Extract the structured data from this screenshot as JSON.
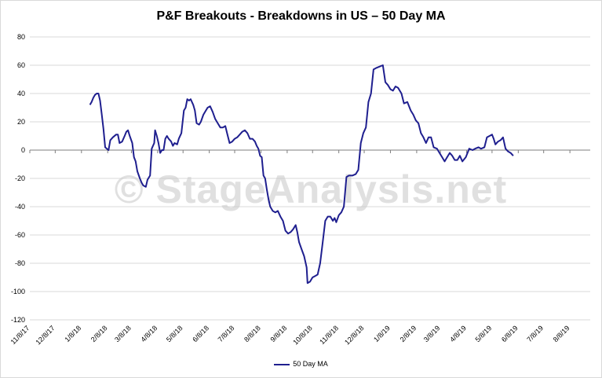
{
  "chart_data": {
    "type": "line",
    "title": "P&F Breakouts - Breakdowns in US – 50 Day MA",
    "watermark": "© StageAnalysis.net",
    "ylim": [
      -120,
      80
    ],
    "yticks": [
      80,
      60,
      40,
      20,
      0,
      -20,
      -40,
      -60,
      -80,
      -100,
      -120
    ],
    "xlim": [
      "2017-11-08",
      "2019-09-01"
    ],
    "xtick_labels": [
      "11/8/17",
      "12/8/17",
      "1/8/18",
      "2/8/18",
      "3/8/18",
      "4/8/18",
      "5/8/18",
      "6/8/18",
      "7/8/18",
      "8/8/18",
      "9/8/18",
      "10/8/18",
      "11/8/18",
      "12/8/18",
      "1/8/19",
      "2/8/19",
      "3/8/19",
      "4/8/19",
      "5/8/19",
      "6/8/19",
      "7/8/19",
      "8/8/19"
    ],
    "xtick_dates": [
      "2017-11-08",
      "2017-12-08",
      "2018-01-08",
      "2018-02-08",
      "2018-03-08",
      "2018-04-08",
      "2018-05-08",
      "2018-06-08",
      "2018-07-08",
      "2018-08-08",
      "2018-09-08",
      "2018-10-08",
      "2018-11-08",
      "2018-12-08",
      "2019-01-08",
      "2019-02-08",
      "2019-03-08",
      "2019-04-08",
      "2019-05-08",
      "2019-06-08",
      "2019-07-08",
      "2019-08-08"
    ],
    "legend": {
      "position": "bottom",
      "label": "50 Day MA"
    },
    "grid": {
      "horizontal": true,
      "vertical": false
    },
    "series": [
      {
        "name": "50 Day MA",
        "color": "#1f1f8f",
        "points": [
          [
            "2018-01-18",
            32
          ],
          [
            "2018-01-20",
            34
          ],
          [
            "2018-01-22",
            37
          ],
          [
            "2018-01-24",
            39
          ],
          [
            "2018-01-26",
            40
          ],
          [
            "2018-01-28",
            40
          ],
          [
            "2018-01-30",
            35
          ],
          [
            "2018-02-01",
            25
          ],
          [
            "2018-02-03",
            15
          ],
          [
            "2018-02-05",
            2
          ],
          [
            "2018-02-07",
            1
          ],
          [
            "2018-02-09",
            0
          ],
          [
            "2018-02-11",
            7
          ],
          [
            "2018-02-14",
            9
          ],
          [
            "2018-02-18",
            11
          ],
          [
            "2018-02-20",
            11
          ],
          [
            "2018-02-22",
            5
          ],
          [
            "2018-02-25",
            6
          ],
          [
            "2018-02-28",
            10
          ],
          [
            "2018-03-02",
            13
          ],
          [
            "2018-03-04",
            14
          ],
          [
            "2018-03-06",
            10
          ],
          [
            "2018-03-09",
            5
          ],
          [
            "2018-03-11",
            -5
          ],
          [
            "2018-03-13",
            -8
          ],
          [
            "2018-03-15",
            -15
          ],
          [
            "2018-03-18",
            -20
          ],
          [
            "2018-03-20",
            -23
          ],
          [
            "2018-03-22",
            -25
          ],
          [
            "2018-03-25",
            -26
          ],
          [
            "2018-03-27",
            -21
          ],
          [
            "2018-03-30",
            -18
          ],
          [
            "2018-04-01",
            1
          ],
          [
            "2018-04-04",
            5
          ],
          [
            "2018-04-05",
            14
          ],
          [
            "2018-04-07",
            10
          ],
          [
            "2018-04-09",
            5
          ],
          [
            "2018-04-11",
            -2
          ],
          [
            "2018-04-13",
            0
          ],
          [
            "2018-04-15",
            0
          ],
          [
            "2018-04-17",
            8
          ],
          [
            "2018-04-19",
            10
          ],
          [
            "2018-04-21",
            8
          ],
          [
            "2018-04-24",
            6
          ],
          [
            "2018-04-26",
            3
          ],
          [
            "2018-04-28",
            5
          ],
          [
            "2018-05-01",
            4
          ],
          [
            "2018-05-03",
            8
          ],
          [
            "2018-05-06",
            12
          ],
          [
            "2018-05-09",
            28
          ],
          [
            "2018-05-11",
            30
          ],
          [
            "2018-05-13",
            36
          ],
          [
            "2018-05-15",
            35
          ],
          [
            "2018-05-17",
            36
          ],
          [
            "2018-05-20",
            32
          ],
          [
            "2018-05-22",
            28
          ],
          [
            "2018-05-24",
            19
          ],
          [
            "2018-05-27",
            18
          ],
          [
            "2018-05-29",
            20
          ],
          [
            "2018-06-01",
            25
          ],
          [
            "2018-06-04",
            28
          ],
          [
            "2018-06-06",
            30
          ],
          [
            "2018-06-09",
            31
          ],
          [
            "2018-06-12",
            27
          ],
          [
            "2018-06-15",
            22
          ],
          [
            "2018-06-18",
            19
          ],
          [
            "2018-06-21",
            16
          ],
          [
            "2018-06-24",
            16
          ],
          [
            "2018-06-27",
            17
          ],
          [
            "2018-06-29",
            12
          ],
          [
            "2018-07-02",
            5
          ],
          [
            "2018-07-05",
            6
          ],
          [
            "2018-07-08",
            8
          ],
          [
            "2018-07-11",
            9
          ],
          [
            "2018-07-14",
            11
          ],
          [
            "2018-07-17",
            13
          ],
          [
            "2018-07-20",
            14
          ],
          [
            "2018-07-23",
            12
          ],
          [
            "2018-07-26",
            8
          ],
          [
            "2018-07-29",
            8
          ],
          [
            "2018-08-01",
            6
          ],
          [
            "2018-08-03",
            3
          ],
          [
            "2018-08-05",
            1
          ],
          [
            "2018-08-07",
            -4
          ],
          [
            "2018-08-09",
            -5
          ],
          [
            "2018-08-11",
            -18
          ],
          [
            "2018-08-13",
            -20
          ],
          [
            "2018-08-15",
            -28
          ],
          [
            "2018-08-17",
            -35
          ],
          [
            "2018-08-19",
            -40
          ],
          [
            "2018-08-22",
            -43
          ],
          [
            "2018-08-25",
            -44
          ],
          [
            "2018-08-28",
            -43
          ],
          [
            "2018-08-31",
            -47
          ],
          [
            "2018-09-03",
            -50
          ],
          [
            "2018-09-06",
            -57
          ],
          [
            "2018-09-09",
            -59
          ],
          [
            "2018-09-12",
            -58
          ],
          [
            "2018-09-15",
            -56
          ],
          [
            "2018-09-18",
            -53
          ],
          [
            "2018-09-20",
            -58
          ],
          [
            "2018-09-22",
            -65
          ],
          [
            "2018-09-25",
            -70
          ],
          [
            "2018-09-28",
            -75
          ],
          [
            "2018-10-01",
            -83
          ],
          [
            "2018-10-02",
            -94
          ],
          [
            "2018-10-05",
            -93
          ],
          [
            "2018-10-08",
            -90
          ],
          [
            "2018-10-11",
            -89
          ],
          [
            "2018-10-14",
            -88
          ],
          [
            "2018-10-17",
            -80
          ],
          [
            "2018-10-20",
            -65
          ],
          [
            "2018-10-23",
            -50
          ],
          [
            "2018-10-26",
            -47
          ],
          [
            "2018-10-29",
            -47
          ],
          [
            "2018-11-01",
            -50
          ],
          [
            "2018-11-03",
            -48
          ],
          [
            "2018-11-05",
            -51
          ],
          [
            "2018-11-08",
            -46
          ],
          [
            "2018-11-11",
            -44
          ],
          [
            "2018-11-14",
            -40
          ],
          [
            "2018-11-17",
            -19
          ],
          [
            "2018-11-20",
            -18
          ],
          [
            "2018-11-24",
            -18
          ],
          [
            "2018-11-28",
            -17
          ],
          [
            "2018-12-01",
            -14
          ],
          [
            "2018-12-04",
            5
          ],
          [
            "2018-12-07",
            12
          ],
          [
            "2018-12-10",
            16
          ],
          [
            "2018-12-13",
            34
          ],
          [
            "2018-12-16",
            40
          ],
          [
            "2018-12-19",
            57
          ],
          [
            "2018-12-22",
            58
          ],
          [
            "2018-12-26",
            59
          ],
          [
            "2018-12-30",
            60
          ],
          [
            "2019-01-02",
            48
          ],
          [
            "2019-01-05",
            46
          ],
          [
            "2019-01-08",
            43
          ],
          [
            "2019-01-11",
            42
          ],
          [
            "2019-01-14",
            45
          ],
          [
            "2019-01-17",
            44
          ],
          [
            "2019-01-21",
            40
          ],
          [
            "2019-01-24",
            33
          ],
          [
            "2019-01-28",
            34
          ],
          [
            "2019-02-01",
            28
          ],
          [
            "2019-02-04",
            25
          ],
          [
            "2019-02-07",
            21
          ],
          [
            "2019-02-10",
            19
          ],
          [
            "2019-02-13",
            12
          ],
          [
            "2019-02-16",
            9
          ],
          [
            "2019-02-19",
            5
          ],
          [
            "2019-02-22",
            9
          ],
          [
            "2019-02-25",
            9
          ],
          [
            "2019-02-28",
            2
          ],
          [
            "2019-03-04",
            1
          ],
          [
            "2019-03-07",
            -2
          ],
          [
            "2019-03-10",
            -5
          ],
          [
            "2019-03-13",
            -8
          ],
          [
            "2019-03-16",
            -5
          ],
          [
            "2019-03-19",
            -2
          ],
          [
            "2019-03-22",
            -4
          ],
          [
            "2019-03-25",
            -7
          ],
          [
            "2019-03-28",
            -7
          ],
          [
            "2019-03-31",
            -4
          ],
          [
            "2019-04-03",
            -8
          ],
          [
            "2019-04-07",
            -5
          ],
          [
            "2019-04-11",
            1
          ],
          [
            "2019-04-15",
            0
          ],
          [
            "2019-04-18",
            1
          ],
          [
            "2019-04-22",
            2
          ],
          [
            "2019-04-25",
            1
          ],
          [
            "2019-04-29",
            2
          ],
          [
            "2019-05-02",
            9
          ],
          [
            "2019-05-05",
            10
          ],
          [
            "2019-05-08",
            11
          ],
          [
            "2019-05-10",
            8
          ],
          [
            "2019-05-12",
            4
          ],
          [
            "2019-05-15",
            6
          ],
          [
            "2019-05-18",
            7
          ],
          [
            "2019-05-21",
            9
          ],
          [
            "2019-05-24",
            1
          ],
          [
            "2019-05-27",
            -1
          ],
          [
            "2019-05-30",
            -2
          ],
          [
            "2019-06-02",
            -4
          ]
        ]
      }
    ]
  }
}
